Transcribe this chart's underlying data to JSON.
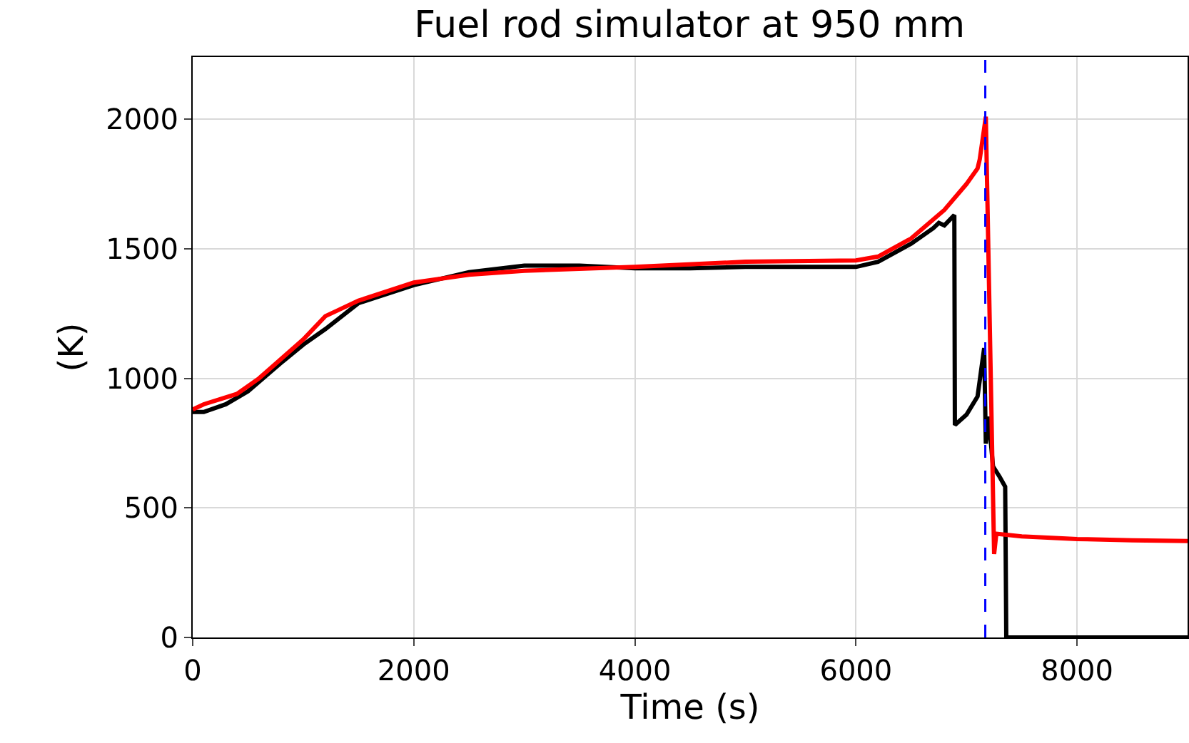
{
  "chart_data": {
    "type": "line",
    "title": "Fuel rod simulator at 950 mm",
    "xlabel": "Time (s)",
    "ylabel": "(K)",
    "xlim": [
      0,
      9000
    ],
    "ylim": [
      0,
      2240
    ],
    "xticks": [
      0,
      2000,
      4000,
      6000,
      8000
    ],
    "yticks": [
      0,
      500,
      1000,
      1500,
      2000
    ],
    "grid": true,
    "marker": "none",
    "line_style": "solid",
    "series": [
      {
        "color": "#000000",
        "x": [
          0,
          100,
          300,
          500,
          800,
          1000,
          1200,
          1500,
          2000,
          2500,
          3000,
          3500,
          4000,
          4500,
          5000,
          6000,
          6200,
          6500,
          6700,
          6750,
          6800,
          6890,
          6895,
          7000,
          7100,
          7160,
          7175,
          7200,
          7240,
          7300,
          7350,
          7355,
          7360,
          9000
        ],
        "values": [
          870,
          870,
          900,
          950,
          1060,
          1130,
          1190,
          1290,
          1360,
          1410,
          1435,
          1435,
          1425,
          1425,
          1430,
          1430,
          1450,
          1520,
          1580,
          1600,
          1590,
          1630,
          820,
          860,
          930,
          1117,
          748,
          852,
          660,
          620,
          582,
          300,
          0,
          0
        ]
      },
      {
        "color": "#ff0000",
        "x": [
          0,
          100,
          400,
          600,
          1000,
          1200,
          1300,
          1500,
          2000,
          2500,
          3000,
          4000,
          5000,
          6000,
          6200,
          6500,
          6800,
          7000,
          7100,
          7120,
          7175,
          7250,
          7270,
          7500,
          8000,
          8500,
          9000
        ],
        "values": [
          880,
          900,
          940,
          1000,
          1150,
          1240,
          1260,
          1300,
          1370,
          1400,
          1415,
          1430,
          1450,
          1455,
          1470,
          1540,
          1650,
          1750,
          1810,
          1845,
          2010,
          322,
          400,
          390,
          380,
          375,
          372
        ]
      }
    ],
    "ref_lines": [
      {
        "axis": "x",
        "value": 7170,
        "color": "#0000ff",
        "line_style": "dashed"
      }
    ]
  }
}
